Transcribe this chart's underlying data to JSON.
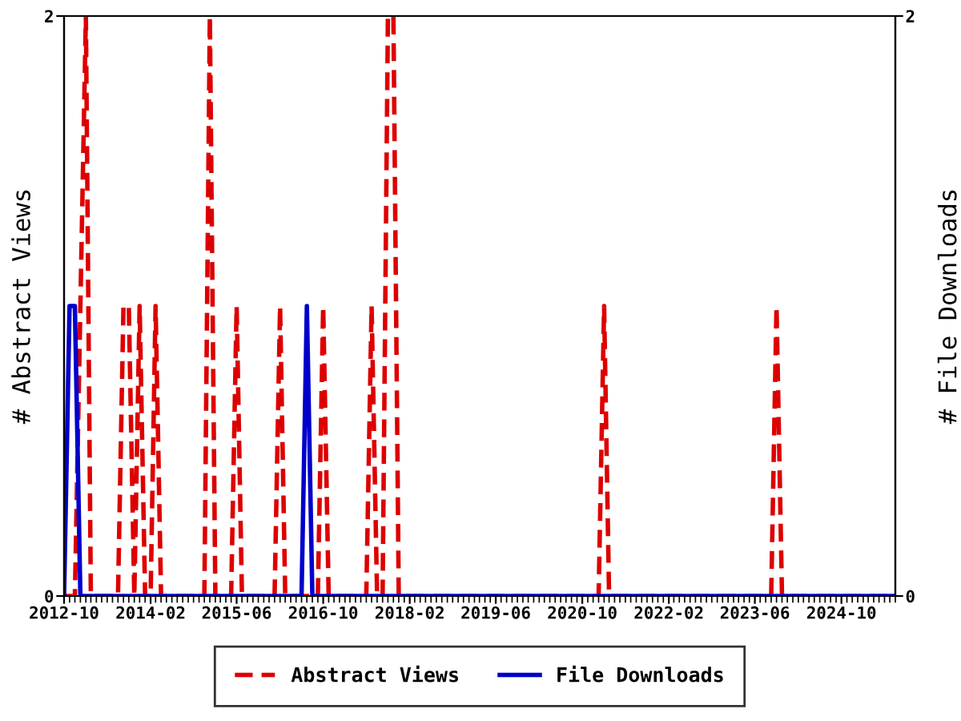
{
  "chart_data": {
    "type": "line",
    "xlabel": null,
    "ylabel": "# Abstract Views",
    "y2label": "# File Downloads",
    "xlim": [
      "2012-10",
      "2025-08"
    ],
    "xticks": [
      "2012-10",
      "2014-02",
      "2015-06",
      "2016-10",
      "2018-02",
      "2019-06",
      "2020-10",
      "2022-02",
      "2023-06",
      "2024-10"
    ],
    "ylim": [
      0,
      2
    ],
    "yticks": [
      0,
      2
    ],
    "y2lim": [
      0,
      2
    ],
    "y2ticks": [
      0,
      2
    ],
    "grid": false,
    "legend": "bottom",
    "series": [
      {
        "name": "Abstract Views",
        "color": "#dd0000",
        "line_style": "dashed",
        "axis": "y",
        "x": [
          "2012-10",
          "2012-12",
          "2013-01",
          "2013-02",
          "2013-03",
          "2013-08",
          "2013-09",
          "2013-10",
          "2013-11",
          "2013-12",
          "2014-01",
          "2014-02",
          "2014-03",
          "2014-04",
          "2014-12",
          "2015-01",
          "2015-02",
          "2015-05",
          "2015-06",
          "2015-07",
          "2016-01",
          "2016-02",
          "2016-03",
          "2016-09",
          "2016-10",
          "2016-11",
          "2017-06",
          "2017-07",
          "2017-08",
          "2017-09",
          "2017-10",
          "2017-11",
          "2017-12",
          "2021-01",
          "2021-02",
          "2021-03",
          "2023-09",
          "2023-10",
          "2023-11",
          "2025-08"
        ],
        "values": [
          0,
          0,
          1,
          2,
          0,
          0,
          1,
          1,
          0,
          1,
          0,
          0,
          1,
          0,
          0,
          2,
          0,
          0,
          1,
          0,
          0,
          1,
          0,
          0,
          1,
          0,
          0,
          1,
          0,
          0,
          2,
          2,
          0,
          0,
          1,
          0,
          0,
          1,
          0,
          0
        ]
      },
      {
        "name": "File Downloads",
        "color": "#0000cc",
        "line_style": "solid",
        "axis": "y2",
        "x": [
          "2012-10",
          "2012-11",
          "2012-12",
          "2013-01",
          "2016-06",
          "2016-07",
          "2016-08",
          "2025-08"
        ],
        "values": [
          0,
          1,
          1,
          0,
          0,
          1,
          0,
          0
        ]
      }
    ]
  }
}
